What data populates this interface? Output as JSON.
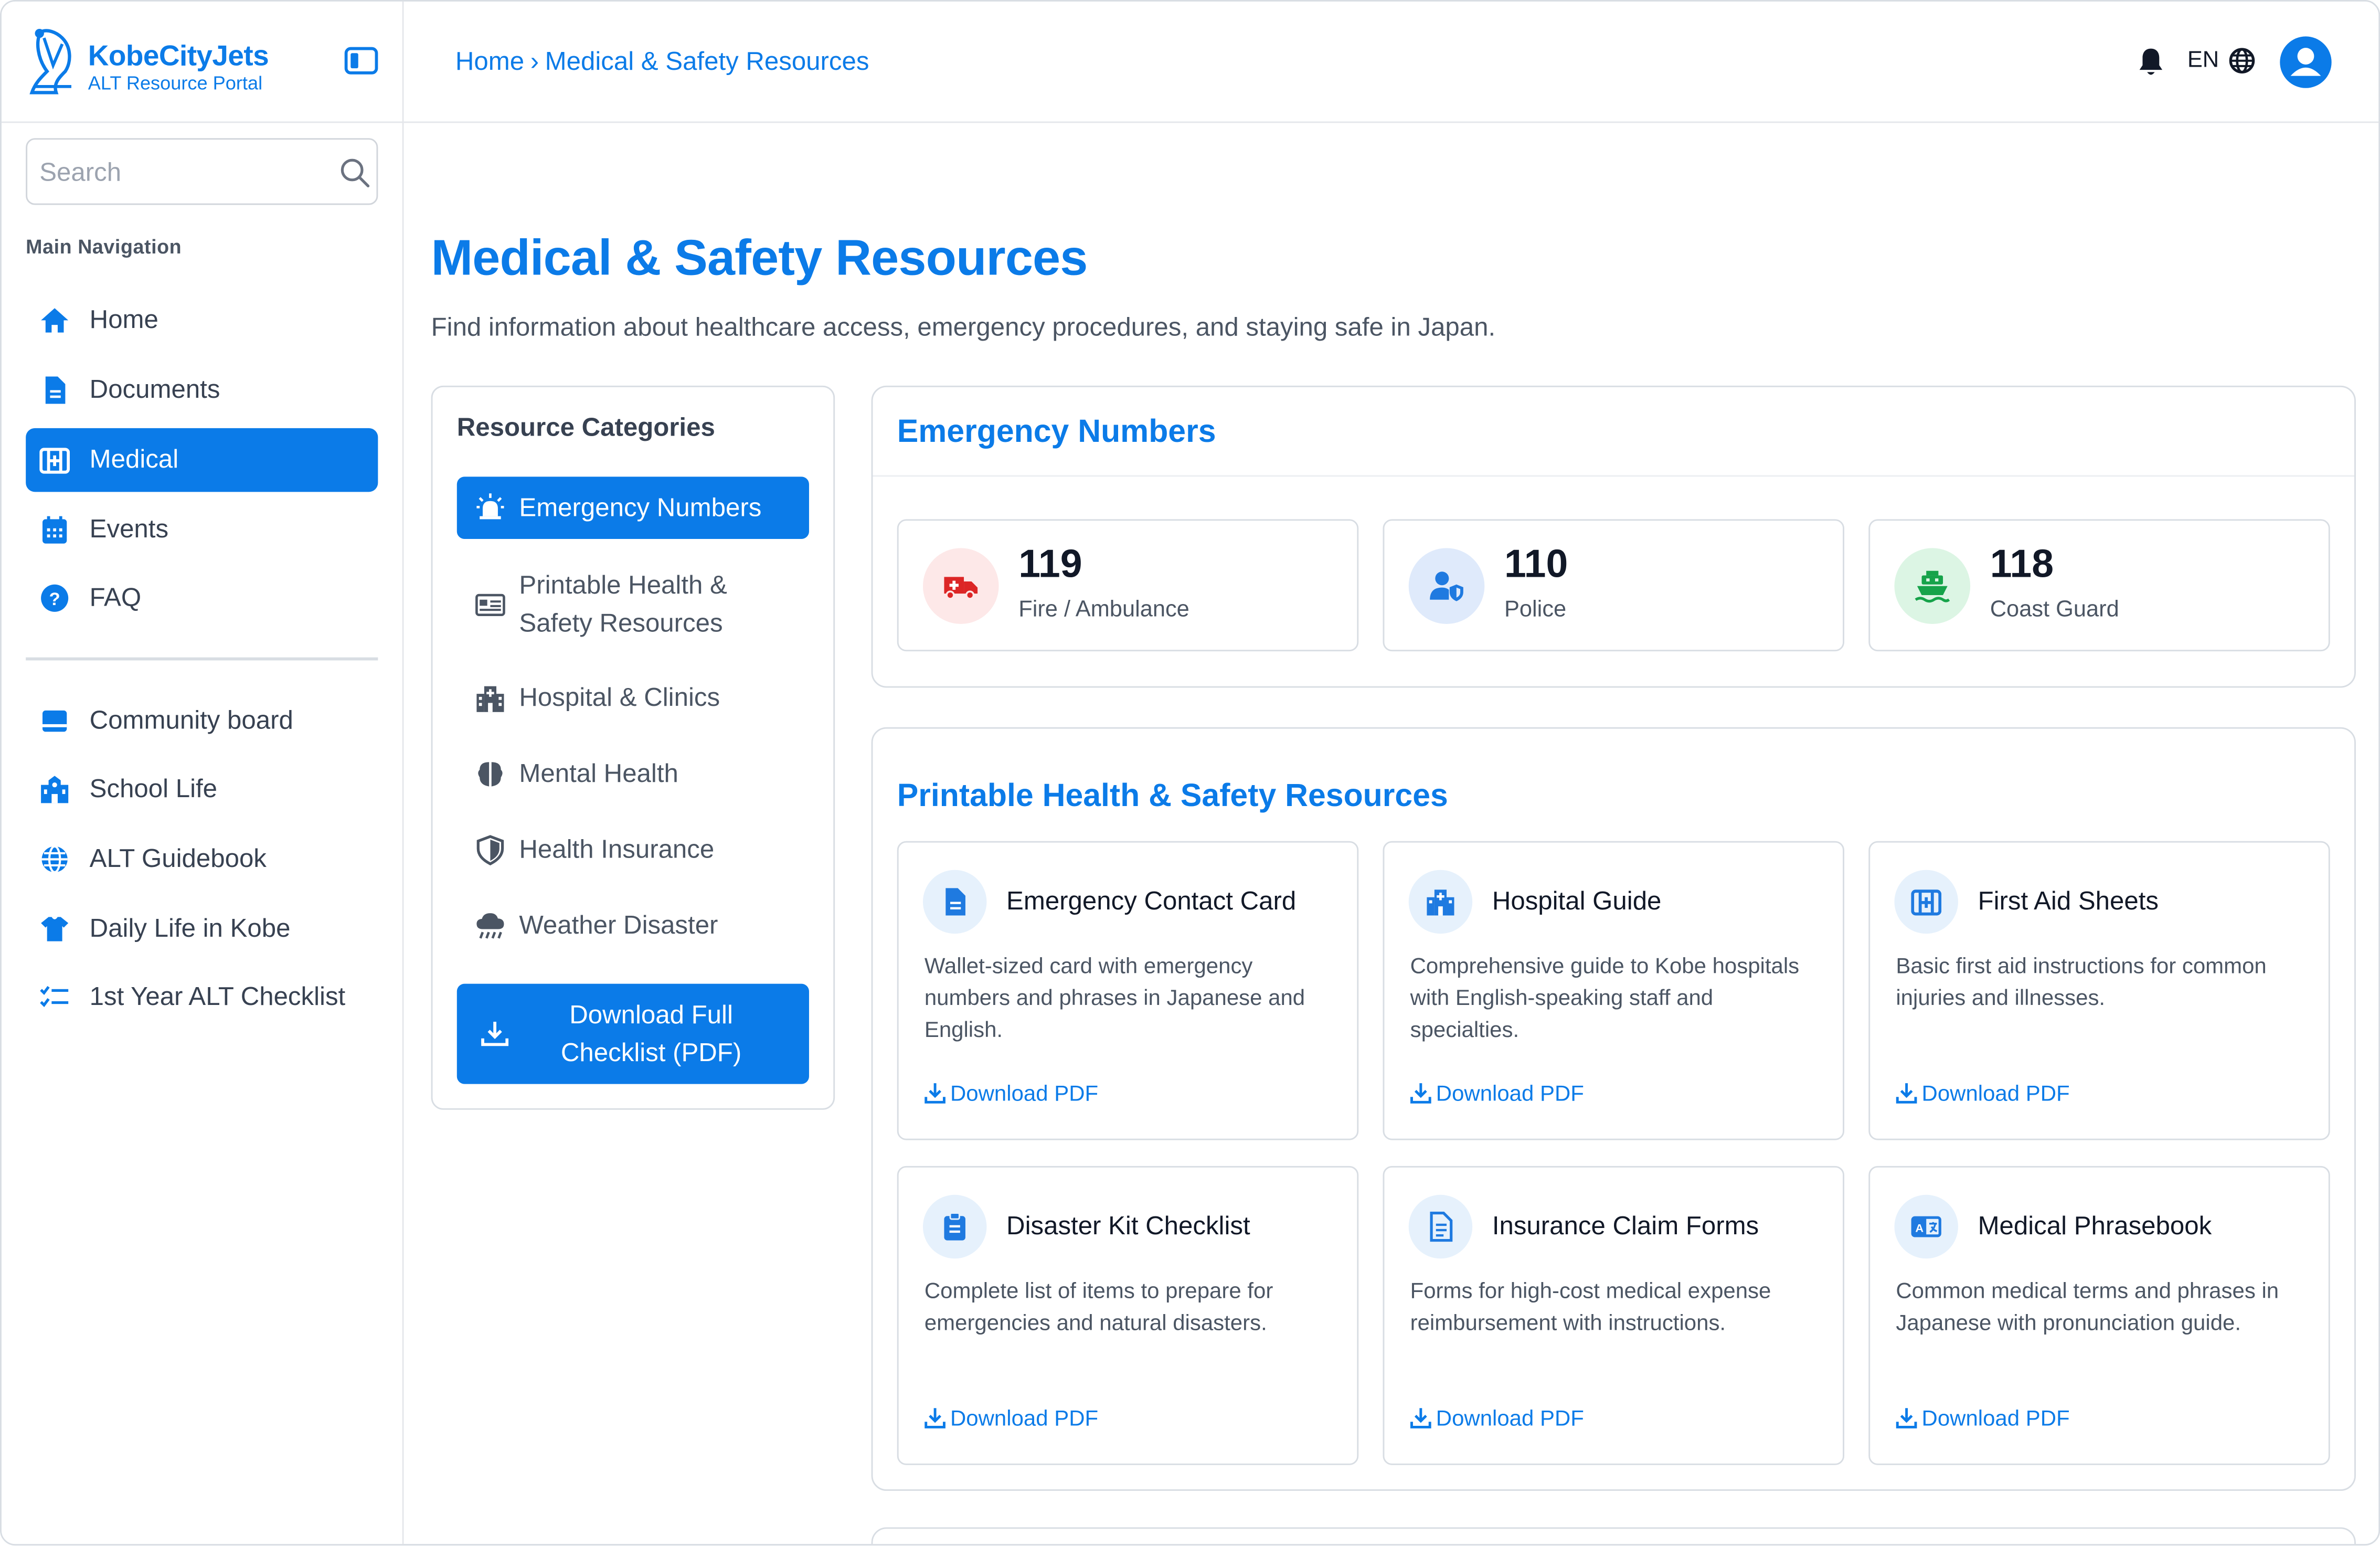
{
  "brand": {
    "name": "KobeCityJets",
    "subtitle": "ALT Resource Portal"
  },
  "search": {
    "placeholder": "Search"
  },
  "sidebar": {
    "section_title": "Main Navigation",
    "items": [
      {
        "label": "Home",
        "icon": "home-icon"
      },
      {
        "label": "Documents",
        "icon": "document-icon"
      },
      {
        "label": "Medical",
        "icon": "medical-kit-icon",
        "active": true
      },
      {
        "label": "Events",
        "icon": "calendar-icon"
      },
      {
        "label": "FAQ",
        "icon": "question-icon"
      }
    ],
    "secondary": [
      {
        "label": "Community board",
        "icon": "board-icon"
      },
      {
        "label": "School Life",
        "icon": "school-icon"
      },
      {
        "label": "ALT Guidebook",
        "icon": "globe-icon"
      },
      {
        "label": "Daily Life in Kobe",
        "icon": "shirt-icon"
      },
      {
        "label": "1st Year ALT Checklist",
        "icon": "checklist-icon"
      }
    ]
  },
  "header": {
    "breadcrumb": {
      "home": "Home",
      "separator": "›",
      "current": "Medical & Safety Resources"
    },
    "language": "EN"
  },
  "main": {
    "title": "Medical & Safety Resources",
    "subtitle": "Find information about healthcare access, emergency procedures, and staying safe in Japan."
  },
  "categories": {
    "heading": "Resource Categories",
    "items": [
      {
        "label": "Emergency Numbers",
        "icon": "siren-icon",
        "active": true
      },
      {
        "label": "Printable Health & Safety Resources",
        "icon": "id-card-icon"
      },
      {
        "label": "Hospital & Clinics",
        "icon": "hospital-icon"
      },
      {
        "label": "Mental Health",
        "icon": "brain-icon"
      },
      {
        "label": "Health Insurance",
        "icon": "shield-icon"
      },
      {
        "label": "Weather Disaster",
        "icon": "storm-cloud-icon"
      }
    ],
    "download_button": "Download Full Checklist (PDF)"
  },
  "emergency": {
    "title": "Emergency Numbers",
    "numbers": [
      {
        "number": "119",
        "label": "Fire / Ambulance",
        "icon": "ambulance-icon",
        "color": "#dc2626",
        "bg": "#fde8e8"
      },
      {
        "number": "110",
        "label": "Police",
        "icon": "police-icon",
        "color": "#1f7ae0",
        "bg": "#dfeafb"
      },
      {
        "number": "118",
        "label": "Coast Guard",
        "icon": "ship-icon",
        "color": "#16a34a",
        "bg": "#dcf5e4"
      }
    ]
  },
  "resources": {
    "title": "Printable Health & Safety Resources",
    "download_label": "Download PDF",
    "items": [
      {
        "title": "Emergency Contact Card",
        "desc": "Wallet-sized card with emergency numbers and phrases in Japanese and English.",
        "icon": "file-icon"
      },
      {
        "title": "Hospital Guide",
        "desc": "Comprehensive guide to Kobe hospitals with English-speaking staff and specialties.",
        "icon": "hospital-icon"
      },
      {
        "title": "First Aid Sheets",
        "desc": "Basic first aid instructions for common injuries and illnesses.",
        "icon": "medical-kit-icon"
      },
      {
        "title": "Disaster Kit Checklist",
        "desc": "Complete list of items to prepare for emergencies and natural disasters.",
        "icon": "clipboard-icon"
      },
      {
        "title": "Insurance Claim Forms",
        "desc": "Forms for high-cost medical expense reimbursement with instructions.",
        "icon": "form-icon"
      },
      {
        "title": "Medical Phrasebook",
        "desc": "Common medical terms and phrases in Japanese with pronunciation guide.",
        "icon": "translate-icon"
      }
    ]
  },
  "colors": {
    "accent": "#0b7be8",
    "border": "#d8dde3",
    "text": "#4b5563"
  }
}
